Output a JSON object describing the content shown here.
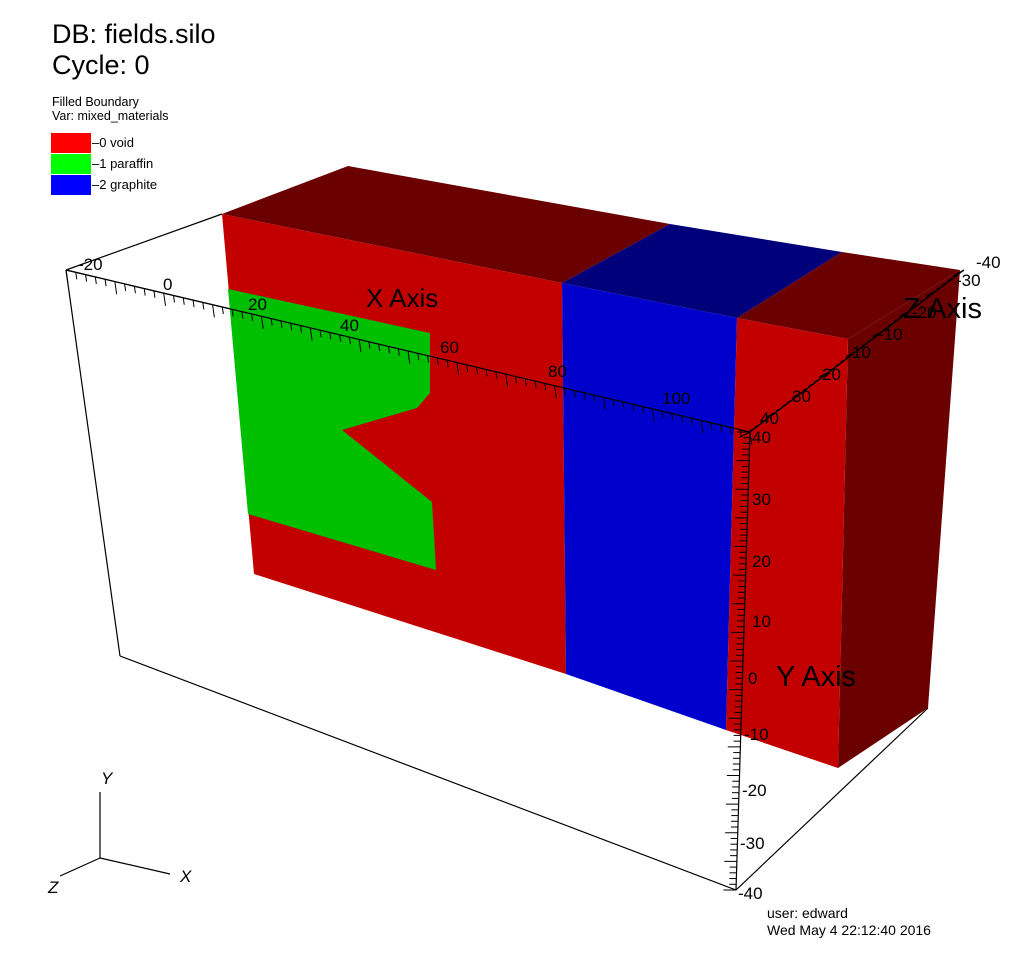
{
  "header": {
    "db_label": "DB: fields.silo",
    "cycle_label": "Cycle: 0"
  },
  "legend": {
    "plot_type": "Filled Boundary",
    "var_label": "Var: mixed_materials",
    "items": [
      {
        "label": "0 void",
        "color": "#ff0000"
      },
      {
        "label": "1 paraffin",
        "color": "#00ff00"
      },
      {
        "label": "2 graphite",
        "color": "#0000ff"
      }
    ]
  },
  "axes": {
    "x_title": "X Axis",
    "y_title": "Y Axis",
    "z_title": "Z Axis",
    "x_ticks": [
      "-20",
      "0",
      "20",
      "40",
      "60",
      "80",
      "100"
    ],
    "y_ticks": [
      "40",
      "30",
      "20",
      "10",
      "0",
      "-10",
      "-20",
      "-30",
      "-40"
    ],
    "z_ticks": [
      "-40",
      "-30",
      "-20",
      "-10",
      "0",
      "10",
      "20",
      "30",
      "40"
    ]
  },
  "triad": {
    "x": "X",
    "y": "Y",
    "z": "Z"
  },
  "footer": {
    "user": "user: edward",
    "timestamp": "Wed May  4 22:12:40 2016"
  },
  "colors": {
    "void_front": "#c20000",
    "void_top": "#6b0000",
    "paraffin_front": "#00bf00",
    "graphite_front": "#0000cc",
    "graphite_top": "#00007a"
  }
}
